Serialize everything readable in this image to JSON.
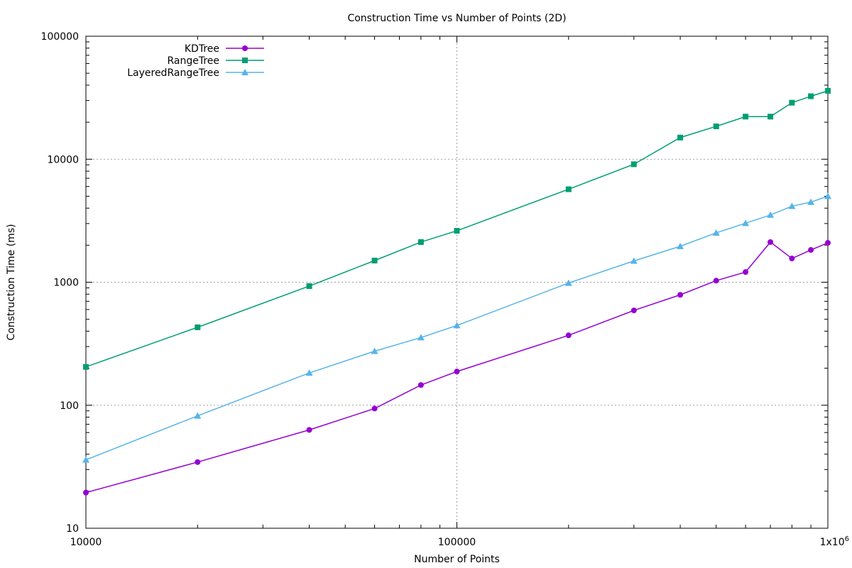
{
  "chart_data": {
    "type": "line",
    "title": "Construction Time vs Number of Points (2D)",
    "xlabel": "Number of Points",
    "ylabel": "Construction Time (ms)",
    "xscale": "log",
    "yscale": "log",
    "xlim": [
      10000,
      1000000
    ],
    "ylim": [
      10,
      100000
    ],
    "grid": true,
    "legend_position": "top-left",
    "x_ticks": [
      {
        "value": 10000,
        "label": "10000"
      },
      {
        "value": 100000,
        "label": "100000"
      },
      {
        "value": 1000000,
        "label": "1x10",
        "sup": "6"
      }
    ],
    "y_ticks": [
      {
        "value": 10,
        "label": "10"
      },
      {
        "value": 100,
        "label": "100"
      },
      {
        "value": 1000,
        "label": "1000"
      },
      {
        "value": 10000,
        "label": "10000"
      },
      {
        "value": 100000,
        "label": "100000"
      }
    ],
    "series": [
      {
        "name": "KDTree",
        "color": "#9400d3",
        "marker": "circle",
        "points": [
          [
            10000,
            19.5
          ],
          [
            20000,
            34.5
          ],
          [
            40000,
            63
          ],
          [
            60000,
            94
          ],
          [
            80000,
            146
          ],
          [
            100000,
            188
          ],
          [
            200000,
            370
          ],
          [
            300000,
            590
          ],
          [
            400000,
            790
          ],
          [
            500000,
            1030
          ],
          [
            600000,
            1210
          ],
          [
            700000,
            2120
          ],
          [
            800000,
            1560
          ],
          [
            900000,
            1830
          ],
          [
            1000000,
            2090
          ]
        ]
      },
      {
        "name": "RangeTree",
        "color": "#009e73",
        "marker": "square",
        "points": [
          [
            10000,
            205
          ],
          [
            20000,
            430
          ],
          [
            40000,
            930
          ],
          [
            60000,
            1500
          ],
          [
            80000,
            2120
          ],
          [
            100000,
            2620
          ],
          [
            200000,
            5700
          ],
          [
            300000,
            9100
          ],
          [
            400000,
            15000
          ],
          [
            500000,
            18500
          ],
          [
            600000,
            22200
          ],
          [
            700000,
            22200
          ],
          [
            800000,
            28800
          ],
          [
            900000,
            32500
          ],
          [
            1000000,
            36000
          ]
        ]
      },
      {
        "name": "LayeredRangeTree",
        "color": "#56b4e9",
        "marker": "triangle",
        "points": [
          [
            10000,
            36
          ],
          [
            20000,
            82
          ],
          [
            40000,
            183
          ],
          [
            60000,
            275
          ],
          [
            80000,
            355
          ],
          [
            100000,
            445
          ],
          [
            200000,
            985
          ],
          [
            300000,
            1490
          ],
          [
            400000,
            1960
          ],
          [
            500000,
            2520
          ],
          [
            600000,
            3020
          ],
          [
            700000,
            3520
          ],
          [
            800000,
            4150
          ],
          [
            900000,
            4480
          ],
          [
            1000000,
            5000
          ]
        ]
      }
    ]
  }
}
